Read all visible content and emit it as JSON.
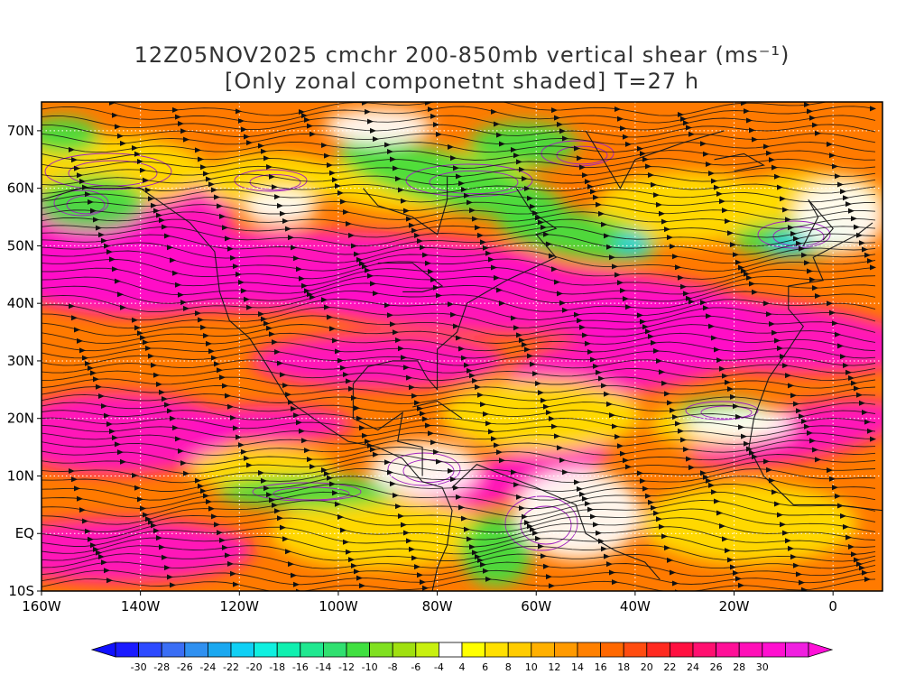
{
  "title": {
    "line1": "12Z05NOV2025 cmchr 200-850mb vertical shear (ms⁻¹)",
    "line2": "[Only zonal componetnt shaded] T=27 h"
  },
  "axes": {
    "lat_labels": [
      "70N",
      "60N",
      "50N",
      "40N",
      "30N",
      "20N",
      "10N",
      "EQ",
      "10S"
    ],
    "lat_values": [
      70,
      60,
      50,
      40,
      30,
      20,
      10,
      0,
      -10
    ],
    "lon_labels": [
      "160W",
      "140W",
      "120W",
      "100W",
      "80W",
      "60W",
      "40W",
      "20W",
      "0"
    ],
    "lon_values": [
      -160,
      -140,
      -120,
      -100,
      -80,
      -60,
      -40,
      -20,
      0
    ],
    "lon_range": [
      -160,
      10
    ],
    "lat_range": [
      -10,
      75
    ]
  },
  "colorbar": {
    "labels": [
      "-30",
      "-28",
      "-26",
      "-24",
      "-22",
      "-20",
      "-18",
      "-16",
      "-14",
      "-12",
      "-10",
      "-8",
      "-6",
      "-4",
      "4",
      "6",
      "8",
      "10",
      "12",
      "14",
      "16",
      "18",
      "20",
      "22",
      "24",
      "26",
      "28",
      "30"
    ],
    "colors": [
      "#1a1aff",
      "#2d4aff",
      "#3a6ef5",
      "#2f90f0",
      "#1aa8f0",
      "#10d0f5",
      "#10f0e0",
      "#10f0b0",
      "#20e890",
      "#30e070",
      "#40e040",
      "#80e020",
      "#a0e010",
      "#c8f010",
      "#ffffff",
      "#ffff00",
      "#ffe000",
      "#ffcc00",
      "#ffb000",
      "#ff9a00",
      "#ff8000",
      "#ff6800",
      "#ff4c10",
      "#ff2a20",
      "#ff1040",
      "#ff1070",
      "#ff1098",
      "#ff10b8",
      "#ff10d0",
      "#f020e0"
    ]
  },
  "colors": {
    "frame": "#000000",
    "coast": "#1a1a1a",
    "contour": "#a020c0",
    "grid": "#ffffff"
  }
}
